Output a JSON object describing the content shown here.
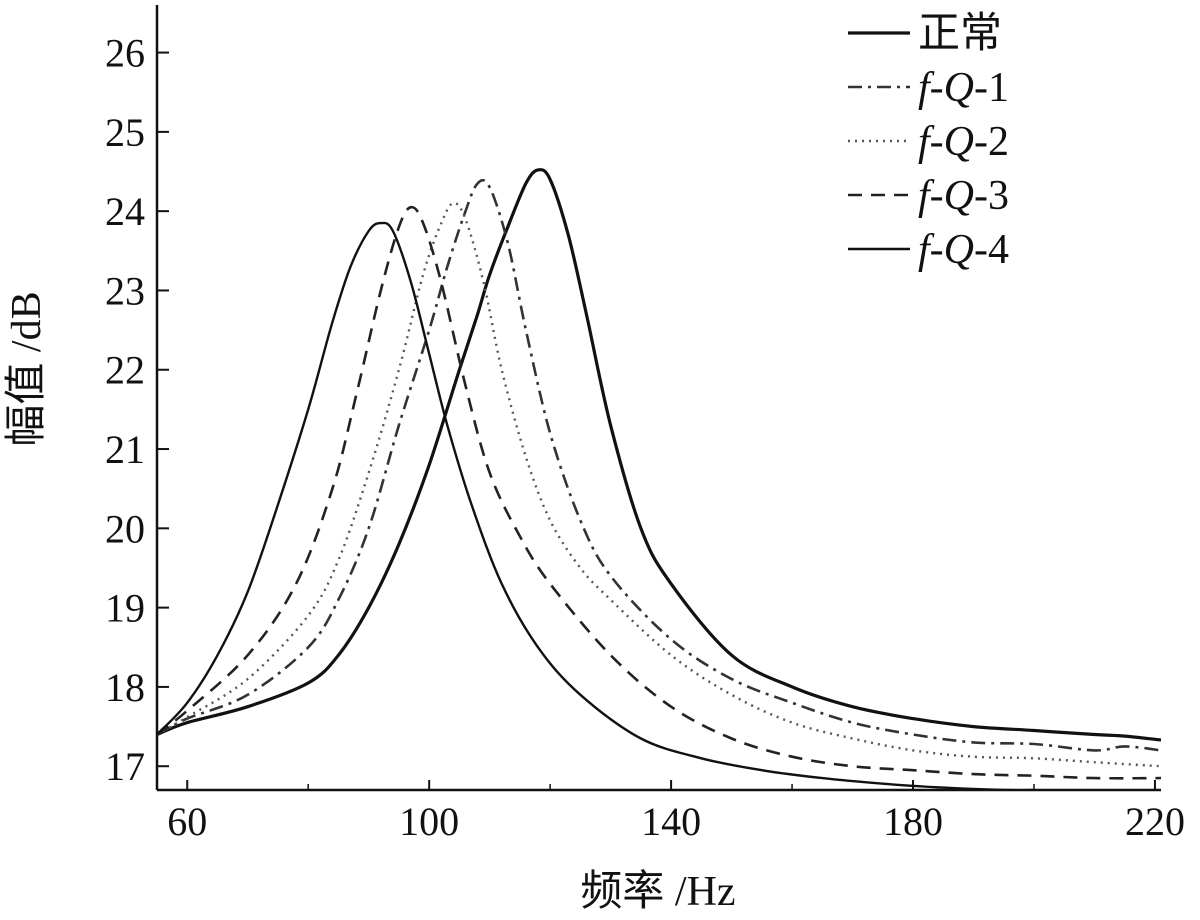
{
  "chart_data": {
    "type": "line",
    "title": "",
    "xlabel": "频率 /Hz",
    "ylabel": "幅值 /dB",
    "xlim": [
      55,
      221
    ],
    "ylim": [
      16.7,
      26.6
    ],
    "xticks": [
      60,
      100,
      140,
      180,
      220
    ],
    "xtick_labels": [
      "60",
      "100",
      "140",
      "180",
      "220"
    ],
    "yticks": [
      17,
      18,
      19,
      20,
      21,
      22,
      23,
      24,
      25,
      26
    ],
    "ytick_labels": [
      "17",
      "18",
      "19",
      "20",
      "21",
      "22",
      "23",
      "24",
      "25",
      "26"
    ],
    "grid": false,
    "legend_position": "top-right",
    "series": [
      {
        "name": "正常",
        "label_parts": [
          "正常"
        ],
        "style": "solid-thick",
        "color": "#111111",
        "points": [
          [
            55,
            17.4
          ],
          [
            60,
            17.55
          ],
          [
            70,
            17.75
          ],
          [
            80,
            18.05
          ],
          [
            85,
            18.4
          ],
          [
            90,
            19.0
          ],
          [
            95,
            19.8
          ],
          [
            100,
            20.8
          ],
          [
            105,
            22.0
          ],
          [
            108,
            22.7
          ],
          [
            110,
            23.2
          ],
          [
            113,
            23.8
          ],
          [
            116,
            24.35
          ],
          [
            118,
            24.52
          ],
          [
            120,
            24.4
          ],
          [
            123,
            23.7
          ],
          [
            126,
            22.7
          ],
          [
            130,
            21.3
          ],
          [
            135,
            20.0
          ],
          [
            140,
            19.3
          ],
          [
            150,
            18.4
          ],
          [
            160,
            18.0
          ],
          [
            170,
            17.75
          ],
          [
            180,
            17.6
          ],
          [
            190,
            17.5
          ],
          [
            200,
            17.45
          ],
          [
            210,
            17.4
          ],
          [
            215,
            17.38
          ],
          [
            221,
            17.33
          ]
        ]
      },
      {
        "name": "f-Q-1",
        "label_parts": [
          "f",
          "-",
          "Q",
          "-1"
        ],
        "style": "dashdot",
        "color": "#333333",
        "points": [
          [
            55,
            17.4
          ],
          [
            60,
            17.6
          ],
          [
            70,
            17.9
          ],
          [
            80,
            18.5
          ],
          [
            85,
            19.1
          ],
          [
            90,
            20.0
          ],
          [
            95,
            21.3
          ],
          [
            100,
            22.5
          ],
          [
            103,
            23.3
          ],
          [
            106,
            24.0
          ],
          [
            108,
            24.35
          ],
          [
            110,
            24.3
          ],
          [
            113,
            23.6
          ],
          [
            116,
            22.5
          ],
          [
            120,
            21.2
          ],
          [
            125,
            20.1
          ],
          [
            130,
            19.4
          ],
          [
            140,
            18.6
          ],
          [
            150,
            18.1
          ],
          [
            160,
            17.8
          ],
          [
            170,
            17.55
          ],
          [
            180,
            17.4
          ],
          [
            190,
            17.3
          ],
          [
            200,
            17.28
          ],
          [
            210,
            17.2
          ],
          [
            215,
            17.25
          ],
          [
            221,
            17.2
          ]
        ]
      },
      {
        "name": "f-Q-2",
        "label_parts": [
          "f",
          "-",
          "Q",
          "-2"
        ],
        "style": "dotted",
        "color": "#555555",
        "points": [
          [
            55,
            17.4
          ],
          [
            60,
            17.62
          ],
          [
            70,
            18.1
          ],
          [
            80,
            18.9
          ],
          [
            85,
            19.6
          ],
          [
            90,
            20.7
          ],
          [
            95,
            22.0
          ],
          [
            99,
            23.2
          ],
          [
            102,
            23.85
          ],
          [
            104,
            24.1
          ],
          [
            106,
            23.9
          ],
          [
            109,
            23.1
          ],
          [
            112,
            22.0
          ],
          [
            116,
            20.9
          ],
          [
            120,
            20.1
          ],
          [
            125,
            19.5
          ],
          [
            130,
            19.1
          ],
          [
            140,
            18.4
          ],
          [
            150,
            17.9
          ],
          [
            160,
            17.55
          ],
          [
            170,
            17.35
          ],
          [
            180,
            17.2
          ],
          [
            190,
            17.12
          ],
          [
            200,
            17.1
          ],
          [
            210,
            17.05
          ],
          [
            221,
            17.0
          ]
        ]
      },
      {
        "name": "f-Q-3",
        "label_parts": [
          "f",
          "-",
          "Q",
          "-3"
        ],
        "style": "dashed",
        "color": "#222222",
        "points": [
          [
            55,
            17.4
          ],
          [
            60,
            17.7
          ],
          [
            70,
            18.4
          ],
          [
            78,
            19.3
          ],
          [
            84,
            20.5
          ],
          [
            88,
            21.7
          ],
          [
            92,
            23.0
          ],
          [
            95,
            23.8
          ],
          [
            97,
            24.05
          ],
          [
            99,
            23.85
          ],
          [
            102,
            23.1
          ],
          [
            106,
            21.8
          ],
          [
            110,
            20.7
          ],
          [
            115,
            19.9
          ],
          [
            120,
            19.3
          ],
          [
            130,
            18.4
          ],
          [
            140,
            17.75
          ],
          [
            150,
            17.35
          ],
          [
            160,
            17.12
          ],
          [
            170,
            17.0
          ],
          [
            180,
            16.95
          ],
          [
            190,
            16.9
          ],
          [
            200,
            16.88
          ],
          [
            210,
            16.85
          ],
          [
            221,
            16.85
          ]
        ]
      },
      {
        "name": "f-Q-4",
        "label_parts": [
          "f",
          "-",
          "Q",
          "-4"
        ],
        "style": "solid-thin",
        "color": "#111111",
        "points": [
          [
            55,
            17.4
          ],
          [
            60,
            17.8
          ],
          [
            65,
            18.4
          ],
          [
            70,
            19.2
          ],
          [
            75,
            20.3
          ],
          [
            80,
            21.5
          ],
          [
            84,
            22.6
          ],
          [
            87,
            23.3
          ],
          [
            90,
            23.75
          ],
          [
            92,
            23.85
          ],
          [
            94,
            23.75
          ],
          [
            97,
            23.1
          ],
          [
            100,
            22.2
          ],
          [
            103,
            21.3
          ],
          [
            107,
            20.3
          ],
          [
            112,
            19.3
          ],
          [
            118,
            18.5
          ],
          [
            125,
            17.9
          ],
          [
            135,
            17.35
          ],
          [
            145,
            17.1
          ],
          [
            155,
            16.95
          ],
          [
            165,
            16.85
          ],
          [
            175,
            16.78
          ],
          [
            185,
            16.73
          ],
          [
            195,
            16.7
          ],
          [
            200,
            16.7
          ]
        ]
      }
    ]
  }
}
